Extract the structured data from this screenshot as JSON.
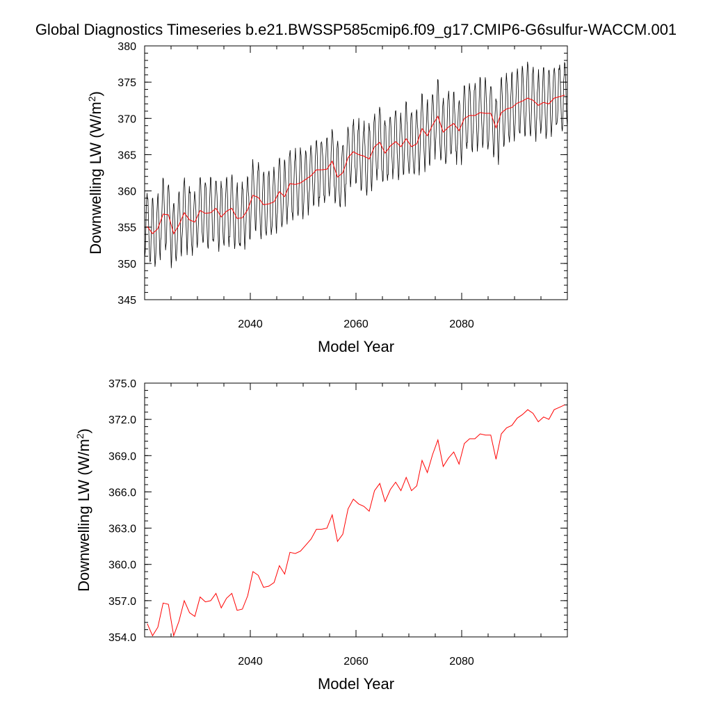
{
  "title": "Global Diagnostics Timeseries b.e21.BWSSP585cmip6.f09_g17.CMIP6-G6sulfur-WACCM.001",
  "colors": {
    "monthly": "#000000",
    "annual": "#ff0000",
    "frame": "#000000"
  },
  "chart_data": [
    {
      "type": "line",
      "xlabel": "Model Year",
      "ylabel": "Downwelling LW (W/m",
      "ylabel_sup": "2",
      "ylabel_close": ")",
      "xlim": [
        2020,
        2100
      ],
      "ylim": [
        345,
        380
      ],
      "xticks": [
        2040,
        2060,
        2080
      ],
      "xtick_labels": [
        "2040",
        "2060",
        "2080"
      ],
      "yticks": [
        345,
        350,
        355,
        360,
        365,
        370,
        375,
        380
      ],
      "ytick_labels": [
        "345",
        "350",
        "355",
        "360",
        "365",
        "370",
        "375",
        "380"
      ],
      "series": [
        {
          "kind": "monthly",
          "color": "#000000",
          "monthly_amplitude": 4.5,
          "source": "annual_means_plus_seasonal_cycle"
        },
        {
          "kind": "annual",
          "color": "#ff0000",
          "source": "annual_means"
        }
      ]
    },
    {
      "type": "line",
      "xlabel": "Model Year",
      "ylabel": "Downwelling LW (W/m",
      "ylabel_sup": "2",
      "ylabel_close": ")",
      "xlim": [
        2020,
        2100
      ],
      "ylim": [
        354,
        375
      ],
      "xticks": [
        2040,
        2060,
        2080
      ],
      "xtick_labels": [
        "2040",
        "2060",
        "2080"
      ],
      "yticks": [
        354,
        357,
        360,
        363,
        366,
        369,
        372,
        375
      ],
      "ytick_labels": [
        "354.0",
        "357.0",
        "360.0",
        "363.0",
        "366.0",
        "369.0",
        "372.0",
        "375.0"
      ],
      "series": [
        {
          "kind": "annual",
          "color": "#ff0000",
          "source": "annual_means"
        }
      ]
    }
  ],
  "annual_means": {
    "x": [
      2020,
      2021,
      2022,
      2023,
      2024,
      2025,
      2026,
      2027,
      2028,
      2029,
      2030,
      2031,
      2032,
      2033,
      2034,
      2035,
      2036,
      2037,
      2038,
      2039,
      2040,
      2041,
      2042,
      2043,
      2044,
      2045,
      2046,
      2047,
      2048,
      2049,
      2050,
      2051,
      2052,
      2053,
      2054,
      2055,
      2056,
      2057,
      2058,
      2059,
      2060,
      2061,
      2062,
      2063,
      2064,
      2065,
      2066,
      2067,
      2068,
      2069,
      2070,
      2071,
      2072,
      2073,
      2074,
      2075,
      2076,
      2077,
      2078,
      2079,
      2080,
      2081,
      2082,
      2083,
      2084,
      2085,
      2086,
      2087,
      2088,
      2089,
      2090,
      2091,
      2092,
      2093,
      2094,
      2095,
      2096,
      2097,
      2098,
      2099
    ],
    "y": [
      355.1,
      354.1,
      354.8,
      356.8,
      356.7,
      354.1,
      355.3,
      357.0,
      356.0,
      355.7,
      357.3,
      356.9,
      357.0,
      357.6,
      356.4,
      357.2,
      357.6,
      356.2,
      356.3,
      357.4,
      359.4,
      359.1,
      358.1,
      358.2,
      358.5,
      359.9,
      359.2,
      361.0,
      360.9,
      361.1,
      361.6,
      362.1,
      362.9,
      362.9,
      363.0,
      364.1,
      361.9,
      362.5,
      364.6,
      365.4,
      365.0,
      364.8,
      364.4,
      366.1,
      366.7,
      365.2,
      366.2,
      366.8,
      366.1,
      367.2,
      366.1,
      366.5,
      368.6,
      367.6,
      369.1,
      370.3,
      368.1,
      368.8,
      369.3,
      368.3,
      370.0,
      370.4,
      370.4,
      370.8,
      370.7,
      370.7,
      368.7,
      370.8,
      371.3,
      371.5,
      372.1,
      372.4,
      372.8,
      372.5,
      371.8,
      372.2,
      372.0,
      372.8,
      373.0,
      373.2
    ]
  }
}
